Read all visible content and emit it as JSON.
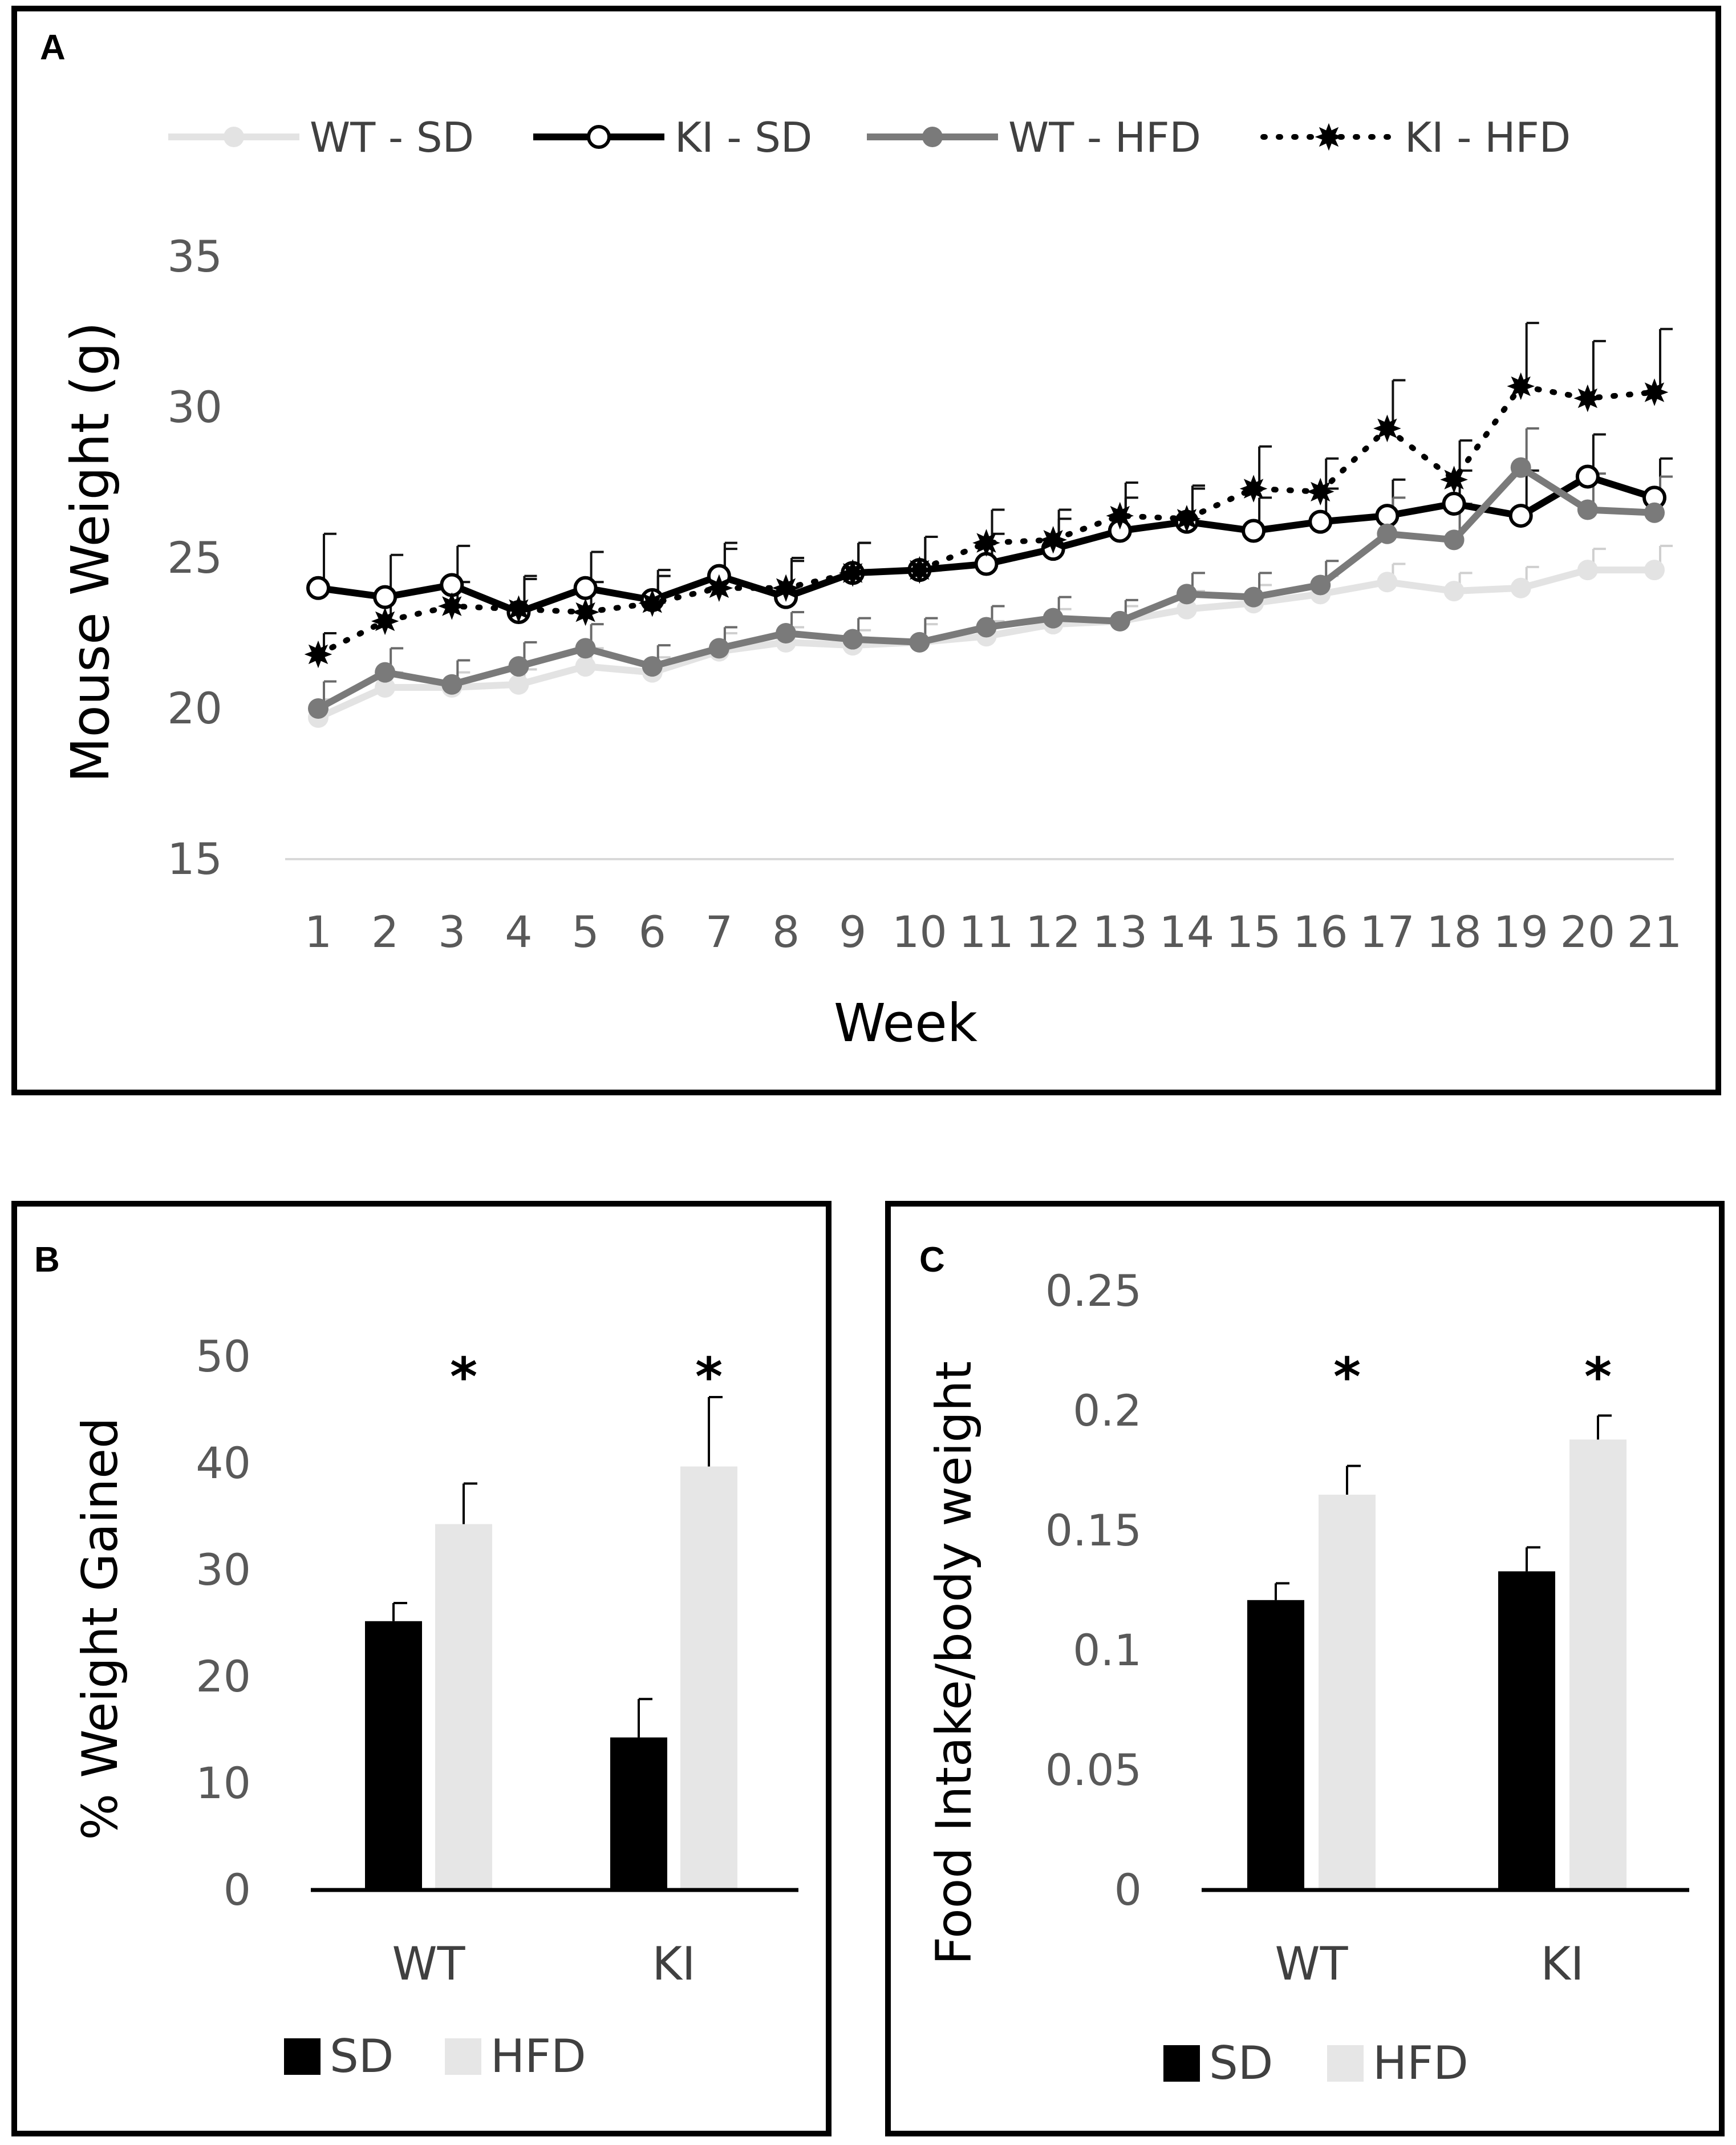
{
  "panels": {
    "a": {
      "letter": "A"
    },
    "b": {
      "letter": "B"
    },
    "c": {
      "letter": "C"
    }
  },
  "chart_data": [
    {
      "id": "A",
      "type": "line",
      "xlabel": "Week",
      "ylabel": "Mouse Weight (g)",
      "ylim": [
        15,
        35
      ],
      "yticks": [
        15,
        20,
        25,
        30,
        35
      ],
      "categories": [
        "1",
        "2",
        "3",
        "4",
        "5",
        "6",
        "7",
        "8",
        "9",
        "10",
        "11",
        "12",
        "13",
        "14",
        "15",
        "16",
        "17",
        "18",
        "19",
        "20",
        "21"
      ],
      "series": [
        {
          "name": "WT - SD",
          "color": "#e3e3e3",
          "marker": "filled",
          "line": "solid",
          "values": [
            19.7,
            20.7,
            20.7,
            20.8,
            21.4,
            21.2,
            21.9,
            22.2,
            22.1,
            22.2,
            22.4,
            22.8,
            22.9,
            23.3,
            23.5,
            23.8,
            24.2,
            23.9,
            24.0,
            24.6,
            24.6
          ],
          "errors": [
            0.6,
            0.5,
            0.5,
            0.5,
            0.6,
            0.5,
            0.6,
            0.5,
            0.5,
            0.6,
            0.5,
            0.5,
            0.5,
            0.6,
            0.6,
            0.6,
            0.6,
            0.6,
            0.7,
            0.7,
            0.8
          ]
        },
        {
          "name": "KI - SD",
          "color": "#000000",
          "marker": "open",
          "line": "solid",
          "values": [
            24.0,
            23.7,
            24.1,
            23.2,
            24.0,
            23.6,
            24.4,
            23.7,
            24.5,
            24.6,
            24.8,
            25.3,
            25.9,
            26.2,
            25.9,
            26.2,
            26.4,
            26.8,
            26.4,
            27.7,
            27.0
          ],
          "errors": [
            1.8,
            1.4,
            1.3,
            1.2,
            1.2,
            1.0,
            1.1,
            1.2,
            1.0,
            1.1,
            1.0,
            1.0,
            1.1,
            1.1,
            1.1,
            1.1,
            1.2,
            1.1,
            1.5,
            1.4,
            1.3
          ]
        },
        {
          "name": "WT - HFD",
          "color": "#7a7a7a",
          "marker": "filled",
          "line": "solid",
          "values": [
            20.0,
            21.2,
            20.8,
            21.4,
            22.0,
            21.4,
            22.0,
            22.5,
            22.3,
            22.2,
            22.7,
            23.0,
            22.9,
            23.8,
            23.7,
            24.1,
            25.8,
            25.6,
            28.0,
            26.6,
            26.5
          ],
          "errors": [
            0.9,
            0.8,
            0.8,
            0.8,
            0.8,
            0.7,
            0.7,
            0.7,
            0.7,
            0.8,
            0.7,
            0.7,
            0.7,
            0.7,
            0.8,
            0.8,
            1.2,
            1.2,
            1.3,
            1.2,
            1.2
          ]
        },
        {
          "name": "KI - HFD",
          "color": "#000000",
          "marker": "star",
          "line": "dotted",
          "values": [
            21.8,
            22.9,
            23.4,
            23.3,
            23.2,
            23.5,
            24.0,
            24.0,
            24.5,
            24.6,
            25.5,
            25.6,
            26.4,
            26.3,
            27.3,
            27.2,
            29.3,
            27.6,
            30.7,
            30.3,
            30.5
          ],
          "errors": [
            0.7,
            0.9,
            0.8,
            1.0,
            1.0,
            0.9,
            1.3,
            1.0,
            1.0,
            1.1,
            1.1,
            1.0,
            1.1,
            1.1,
            1.4,
            1.1,
            1.6,
            1.3,
            2.1,
            1.9,
            2.1
          ]
        }
      ]
    },
    {
      "id": "B",
      "type": "bar",
      "ylabel": "% Weight Gained",
      "ylim": [
        0,
        50
      ],
      "yticks": [
        0,
        10,
        20,
        30,
        40,
        50
      ],
      "categories": [
        "WT",
        "KI"
      ],
      "series": [
        {
          "name": "SD",
          "color": "#000000",
          "values": [
            25.2,
            14.3
          ],
          "errors": [
            1.7,
            3.6
          ]
        },
        {
          "name": "HFD",
          "color": "#e6e6e6",
          "values": [
            34.3,
            39.7
          ],
          "errors": [
            3.8,
            6.5
          ]
        }
      ],
      "annotations": [
        {
          "category": "WT",
          "text": "*"
        },
        {
          "category": "KI",
          "text": "*"
        }
      ]
    },
    {
      "id": "C",
      "type": "bar",
      "ylabel": "Food Intake/body weight",
      "ylim": [
        0,
        0.25
      ],
      "yticks": [
        0,
        0.05,
        0.1,
        0.15,
        0.2,
        0.25
      ],
      "ytick_labels": [
        "0",
        "0.05",
        "0.1",
        "0.15",
        "0.2",
        "0.25"
      ],
      "categories": [
        "WT",
        "KI"
      ],
      "series": [
        {
          "name": "SD",
          "color": "#000000",
          "values": [
            0.121,
            0.133
          ],
          "errors": [
            0.007,
            0.01
          ]
        },
        {
          "name": "HFD",
          "color": "#e6e6e6",
          "values": [
            0.165,
            0.188
          ],
          "errors": [
            0.012,
            0.01
          ]
        }
      ],
      "annotations": [
        {
          "category": "WT",
          "text": "*"
        },
        {
          "category": "KI",
          "text": "*"
        }
      ]
    }
  ]
}
